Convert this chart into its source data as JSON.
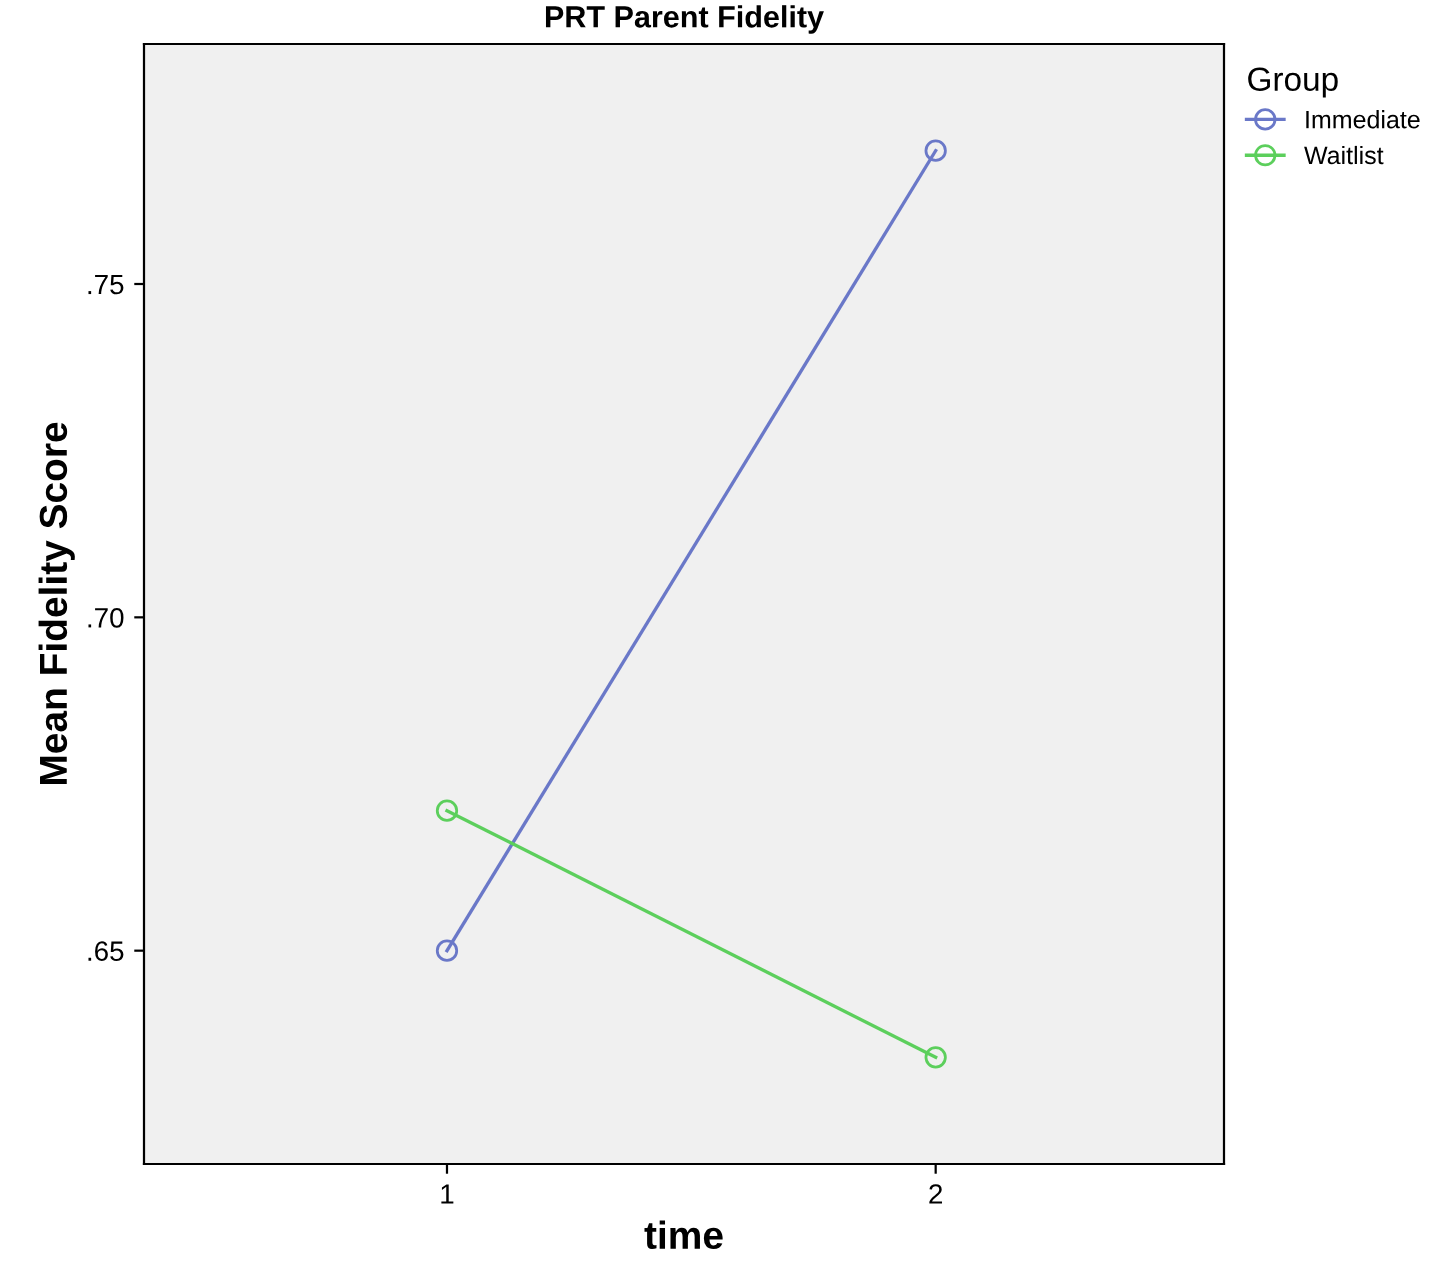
{
  "chart_data": {
    "type": "line",
    "title": "PRT Parent Fidelity",
    "xlabel": "time",
    "ylabel": "Mean Fidelity Score",
    "legend_title": "Group",
    "x": [
      1,
      2
    ],
    "series": [
      {
        "name": "Immediate",
        "color": "#6a78c8",
        "values": [
          0.65,
          0.77
        ]
      },
      {
        "name": "Waitlist",
        "color": "#5ccf5c",
        "values": [
          0.671,
          0.634
        ]
      }
    ],
    "xlim": [
      0.38,
      2.59
    ],
    "xticks": [
      1,
      2
    ],
    "ylim": [
      0.618,
      0.786
    ],
    "yticks": [
      {
        "value": 0.65,
        "label": ".65"
      },
      {
        "value": 0.7,
        "label": ".70"
      },
      {
        "value": 0.75,
        "label": ".75"
      }
    ],
    "marker": "circle",
    "line_style": "solid",
    "grid": false,
    "legend": "top right"
  }
}
